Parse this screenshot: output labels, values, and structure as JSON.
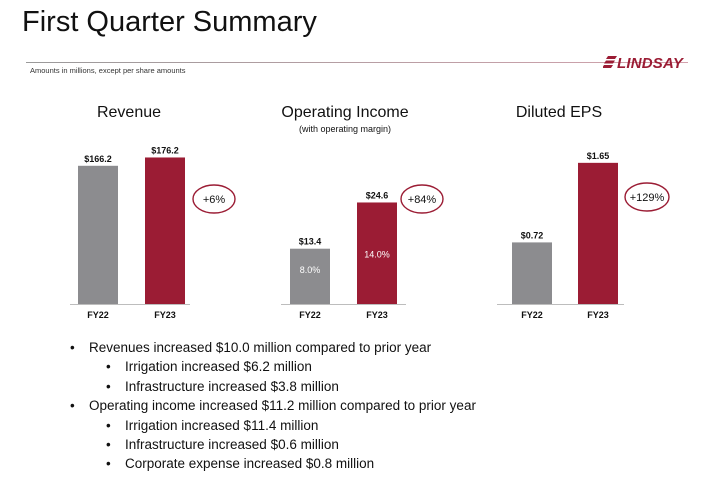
{
  "slide": {
    "title": "First Quarter Summary",
    "note": "Amounts in millions, except per share amounts",
    "logo_text": "LINDSAY"
  },
  "colors": {
    "fy22": "#8c8c8f",
    "fy23": "#9b1c34",
    "badge_stroke": "#9b1c34"
  },
  "chart_data": [
    {
      "type": "bar",
      "title": "Revenue",
      "subtitle": "",
      "categories": [
        "FY22",
        "FY23"
      ],
      "values": [
        166.2,
        176.2
      ],
      "value_labels": [
        "$166.2",
        "$176.2"
      ],
      "inner_labels": [
        "",
        ""
      ],
      "change_label": "+6%",
      "ylim": [
        0,
        190
      ]
    },
    {
      "type": "bar",
      "title": "Operating Income",
      "subtitle": "(with operating margin)",
      "categories": [
        "FY22",
        "FY23"
      ],
      "values": [
        13.4,
        24.6
      ],
      "value_labels": [
        "$13.4",
        "$24.6"
      ],
      "inner_labels": [
        "8.0%",
        "14.0%"
      ],
      "change_label": "+84%",
      "ylim": [
        0,
        31.5
      ]
    },
    {
      "type": "bar",
      "title": "Diluted EPS",
      "subtitle": "",
      "categories": [
        "FY22",
        "FY23"
      ],
      "values": [
        0.72,
        1.65
      ],
      "value_labels": [
        "$0.72",
        "$1.65"
      ],
      "inner_labels": [
        "",
        ""
      ],
      "change_label": "+129%",
      "ylim": [
        0,
        1.73
      ]
    }
  ],
  "bullets": [
    {
      "level": 1,
      "text": "Revenues increased $10.0 million compared to prior year"
    },
    {
      "level": 2,
      "text": "Irrigation increased $6.2 million"
    },
    {
      "level": 2,
      "text": "Infrastructure increased $3.8 million"
    },
    {
      "level": 1,
      "text": "Operating income increased $11.2 million compared to prior year"
    },
    {
      "level": 2,
      "text": "Irrigation increased $11.4 million"
    },
    {
      "level": 2,
      "text": "Infrastructure increased $0.6 million"
    },
    {
      "level": 2,
      "text": "Corporate expense increased $0.8 million"
    }
  ]
}
